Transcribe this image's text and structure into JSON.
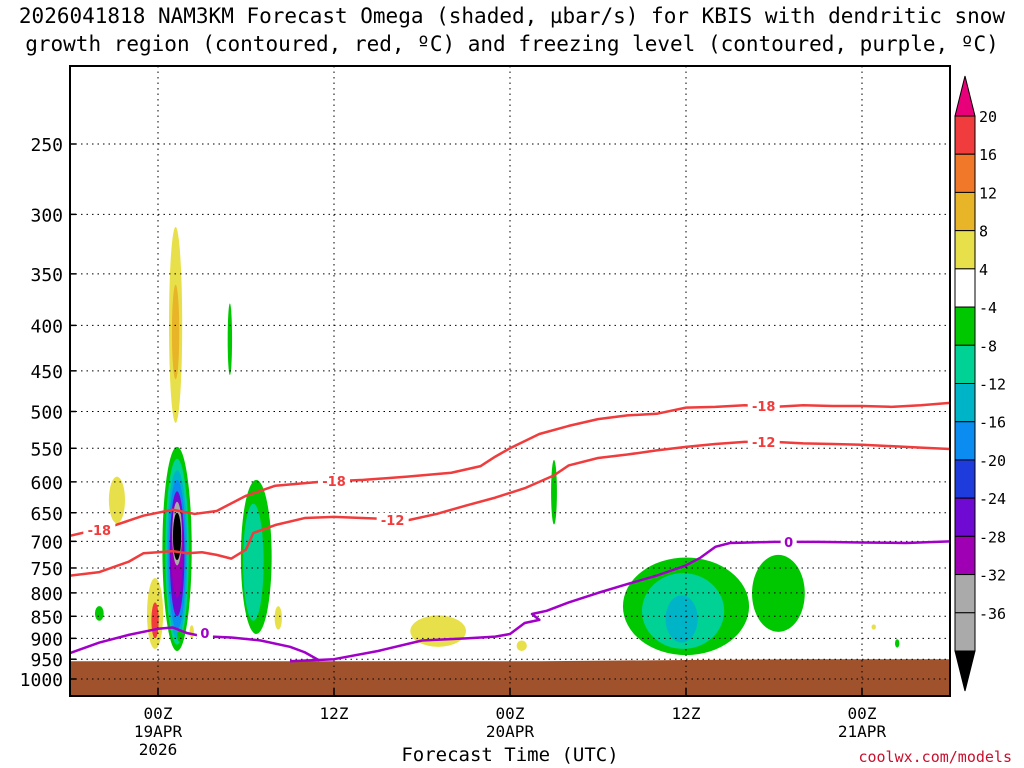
{
  "title": {
    "line1": "2026041818 NAM3KM Forecast Omega (shaded, µbar/s) for KBIS with dendritic snow",
    "line2": "growth region (contoured, red, ºC) and freezing level (contoured, purple, ºC)"
  },
  "credit": "coolwx.com/models",
  "chart_data": {
    "type": "heatmap",
    "title": "2026041818 NAM3KM Forecast Omega (shaded, µbar/s) for KBIS with dendritic snow growth region (contoured, red, ºC) and freezing level (contoured, purple, ºC)",
    "xlabel": "Forecast Time (UTC)",
    "ylabel": "",
    "x_unit": "hours from 2026-04-18 18Z",
    "xlim": [
      6,
      66
    ],
    "ylim": [
      1000,
      200
    ],
    "y_scale": "log-pressure",
    "grid": true,
    "x_ticks": [
      {
        "x": 12,
        "label": "00Z",
        "sub1": "19APR",
        "sub2": "2026"
      },
      {
        "x": 24,
        "label": "12Z",
        "sub1": "",
        "sub2": ""
      },
      {
        "x": 36,
        "label": "00Z",
        "sub1": "20APR",
        "sub2": ""
      },
      {
        "x": 48,
        "label": "12Z",
        "sub1": "",
        "sub2": ""
      },
      {
        "x": 60,
        "label": "00Z",
        "sub1": "21APR",
        "sub2": ""
      }
    ],
    "y_ticks": [
      250,
      300,
      350,
      400,
      450,
      500,
      550,
      600,
      650,
      700,
      750,
      800,
      850,
      900,
      950,
      1000
    ],
    "colorbar": {
      "labels": [
        "20",
        "16",
        "12",
        "8",
        "4",
        "-4",
        "-8",
        "-12",
        "-16",
        "-20",
        "-24",
        "-28",
        "-32",
        "-36"
      ],
      "colors": [
        "#e8007a",
        "#f03c3c",
        "#f07828",
        "#e8b428",
        "#e8e04a",
        "#ffffff",
        "#00c800",
        "#00d296",
        "#00b4c8",
        "#0a8cf0",
        "#1e3cdc",
        "#6e0ad2",
        "#a000b4",
        "#aaaaaa",
        "#000000"
      ]
    },
    "terrain_color": "#a0522d",
    "surface_pressure": [
      {
        "x": 6,
        "p": 955
      },
      {
        "x": 24,
        "p": 955
      },
      {
        "x": 38,
        "p": 955
      },
      {
        "x": 48,
        "p": 952
      },
      {
        "x": 56,
        "p": 950
      },
      {
        "x": 66,
        "p": 950
      }
    ],
    "series": [
      {
        "name": "-18",
        "color": "#f03c3c",
        "points": [
          [
            6,
            690
          ],
          [
            9,
            672
          ],
          [
            11,
            655
          ],
          [
            13,
            645
          ],
          [
            14.5,
            652
          ],
          [
            16,
            647
          ],
          [
            18,
            622
          ],
          [
            20,
            606
          ],
          [
            23,
            600
          ],
          [
            26,
            597
          ],
          [
            29,
            592
          ],
          [
            32,
            586
          ],
          [
            34,
            576
          ],
          [
            35,
            562
          ],
          [
            36,
            550
          ],
          [
            38,
            530
          ],
          [
            40,
            519
          ],
          [
            42,
            510
          ],
          [
            44,
            505
          ],
          [
            46,
            503
          ],
          [
            48,
            495
          ],
          [
            50,
            494
          ],
          [
            52,
            492
          ],
          [
            54,
            494
          ],
          [
            56,
            492
          ],
          [
            58,
            493
          ],
          [
            60,
            493
          ],
          [
            62,
            494
          ],
          [
            64,
            492
          ],
          [
            66,
            489
          ]
        ]
      },
      {
        "name": "-12",
        "color": "#f03c3c",
        "points": [
          [
            6,
            765
          ],
          [
            8,
            758
          ],
          [
            10,
            738
          ],
          [
            11,
            722
          ],
          [
            12,
            720
          ],
          [
            13,
            718
          ],
          [
            14,
            722
          ],
          [
            15,
            720
          ],
          [
            16,
            725
          ],
          [
            17,
            732
          ],
          [
            18,
            715
          ],
          [
            18.5,
            685
          ],
          [
            20,
            671
          ],
          [
            22,
            659
          ],
          [
            24,
            657
          ],
          [
            27,
            660
          ],
          [
            29,
            663
          ],
          [
            31,
            652
          ],
          [
            33,
            638
          ],
          [
            35,
            625
          ],
          [
            37,
            610
          ],
          [
            39,
            590
          ],
          [
            40,
            575
          ],
          [
            42,
            564
          ],
          [
            44,
            559
          ],
          [
            46,
            553
          ],
          [
            48,
            548
          ],
          [
            50,
            544
          ],
          [
            52,
            541
          ],
          [
            54,
            541
          ],
          [
            56,
            543
          ],
          [
            58,
            544
          ],
          [
            60,
            545
          ],
          [
            62,
            547
          ],
          [
            64,
            549
          ],
          [
            66,
            551
          ]
        ]
      },
      {
        "name": "0",
        "color": "#a000c8",
        "points": [
          [
            6,
            935
          ],
          [
            8,
            910
          ],
          [
            10,
            892
          ],
          [
            12,
            878
          ],
          [
            13,
            875
          ],
          [
            14,
            888
          ],
          [
            15,
            895
          ],
          [
            17,
            898
          ],
          [
            19,
            905
          ],
          [
            21,
            920
          ],
          [
            22,
            933
          ],
          [
            23,
            953
          ]
        ],
        "points2": [
          [
            21,
            955
          ],
          [
            24,
            950
          ],
          [
            27,
            930
          ],
          [
            30,
            905
          ],
          [
            33,
            900
          ],
          [
            35,
            896
          ],
          [
            36,
            890
          ],
          [
            37,
            865
          ],
          [
            38,
            858
          ],
          [
            37.5,
            845
          ],
          [
            38.5,
            838
          ],
          [
            40,
            820
          ],
          [
            42,
            800
          ],
          [
            44,
            782
          ],
          [
            46,
            765
          ],
          [
            48,
            745
          ],
          [
            49,
            730
          ],
          [
            50,
            710
          ],
          [
            51,
            703
          ],
          [
            54,
            701
          ],
          [
            57,
            701
          ],
          [
            60,
            702
          ],
          [
            63,
            703
          ],
          [
            66,
            700
          ]
        ]
      }
    ],
    "omega_regions": [
      {
        "label": "8",
        "color": "#e8e04a",
        "cx": 13.2,
        "p0": 310,
        "p1": 515,
        "rx": 0.45
      },
      {
        "label": "12",
        "color": "#e8b428",
        "cx": 13.2,
        "p0": 360,
        "p1": 460,
        "rx": 0.25
      },
      {
        "label": "8",
        "color": "#e8e04a",
        "cx": 9.2,
        "p0": 592,
        "p1": 668,
        "rx": 0.55
      },
      {
        "label": "8",
        "color": "#e8e04a",
        "cx": 11.8,
        "p0": 770,
        "p1": 925,
        "rx": 0.55
      },
      {
        "label": "16",
        "color": "#f03c3c",
        "cx": 11.8,
        "p0": 820,
        "p1": 900,
        "rx": 0.25
      },
      {
        "label": "-8",
        "color": "#00c800",
        "cx": 13.3,
        "p0": 548,
        "p1": 930,
        "rx": 1.0
      },
      {
        "label": "-12",
        "color": "#00d296",
        "cx": 13.3,
        "p0": 565,
        "p1": 915,
        "rx": 0.8
      },
      {
        "label": "-16",
        "color": "#00b4c8",
        "cx": 13.3,
        "p0": 582,
        "p1": 900,
        "rx": 0.7
      },
      {
        "label": "-20",
        "color": "#0a8cf0",
        "cx": 13.3,
        "p0": 597,
        "p1": 880,
        "rx": 0.6
      },
      {
        "label": "-28",
        "color": "#6e0ad2",
        "cx": 13.3,
        "p0": 615,
        "p1": 850,
        "rx": 0.5
      },
      {
        "label": "-32",
        "color": "#a000b4",
        "cx": 13.3,
        "p0": 630,
        "p1": 810,
        "rx": 0.4
      },
      {
        "label": "-36",
        "color": "#aaaaaa",
        "cx": 13.3,
        "p0": 632,
        "p1": 745,
        "rx": 0.33
      },
      {
        "label": "<-36",
        "color": "#000000",
        "cx": 13.3,
        "p0": 650,
        "p1": 735,
        "rx": 0.28
      },
      {
        "label": "-8",
        "color": "#00c800",
        "cx": 16.9,
        "p0": 378,
        "p1": 455,
        "rx": 0.15
      },
      {
        "label": "-8",
        "color": "#00c800",
        "cx": 18.7,
        "p0": 597,
        "p1": 890,
        "rx": 1.05
      },
      {
        "label": "-12",
        "color": "#00d296",
        "cx": 18.5,
        "p0": 635,
        "p1": 860,
        "rx": 0.7
      },
      {
        "label": "-12",
        "color": "#00d296",
        "cx": 18.7,
        "p0": 700,
        "p1": 830,
        "rx": 0.3
      },
      {
        "label": "-8",
        "color": "#00c800",
        "cx": 13.5,
        "p0": 880,
        "p1": 908,
        "rx": 0.2
      },
      {
        "label": "-8",
        "color": "#00c800",
        "cx": 8.0,
        "p0": 828,
        "p1": 860,
        "rx": 0.3
      },
      {
        "label": "8",
        "color": "#e8e04a",
        "cx": 14.3,
        "p0": 870,
        "p1": 900,
        "rx": 0.15
      },
      {
        "label": "8",
        "color": "#e8e04a",
        "cx": 20.2,
        "p0": 828,
        "p1": 880,
        "rx": 0.25
      },
      {
        "label": "8",
        "color": "#e8e04a",
        "cx": 31.1,
        "p0": 848,
        "p1": 920,
        "rx": 1.9
      },
      {
        "label": "8",
        "color": "#e8e04a",
        "cx": 36.8,
        "p0": 905,
        "p1": 930,
        "rx": 0.35
      },
      {
        "label": "-8",
        "color": "#00c800",
        "cx": 39.0,
        "p0": 567,
        "p1": 670,
        "rx": 0.2
      },
      {
        "label": "-8",
        "color": "#00c800",
        "cx": 48.0,
        "p0": 730,
        "p1": 940,
        "rx": 4.3
      },
      {
        "label": "-12",
        "color": "#00d296",
        "cx": 47.8,
        "p0": 760,
        "p1": 925,
        "rx": 2.8
      },
      {
        "label": "-16",
        "color": "#00b4c8",
        "cx": 47.7,
        "p0": 805,
        "p1": 910,
        "rx": 1.1
      },
      {
        "label": "-8",
        "color": "#00c800",
        "cx": 54.3,
        "p0": 725,
        "p1": 885,
        "rx": 1.8
      },
      {
        "label": "-8",
        "color": "#00c800",
        "cx": 62.4,
        "p0": 902,
        "p1": 922,
        "rx": 0.15
      },
      {
        "label": "8",
        "color": "#e8e04a",
        "cx": 60.8,
        "p0": 868,
        "p1": 880,
        "rx": 0.15
      }
    ]
  }
}
